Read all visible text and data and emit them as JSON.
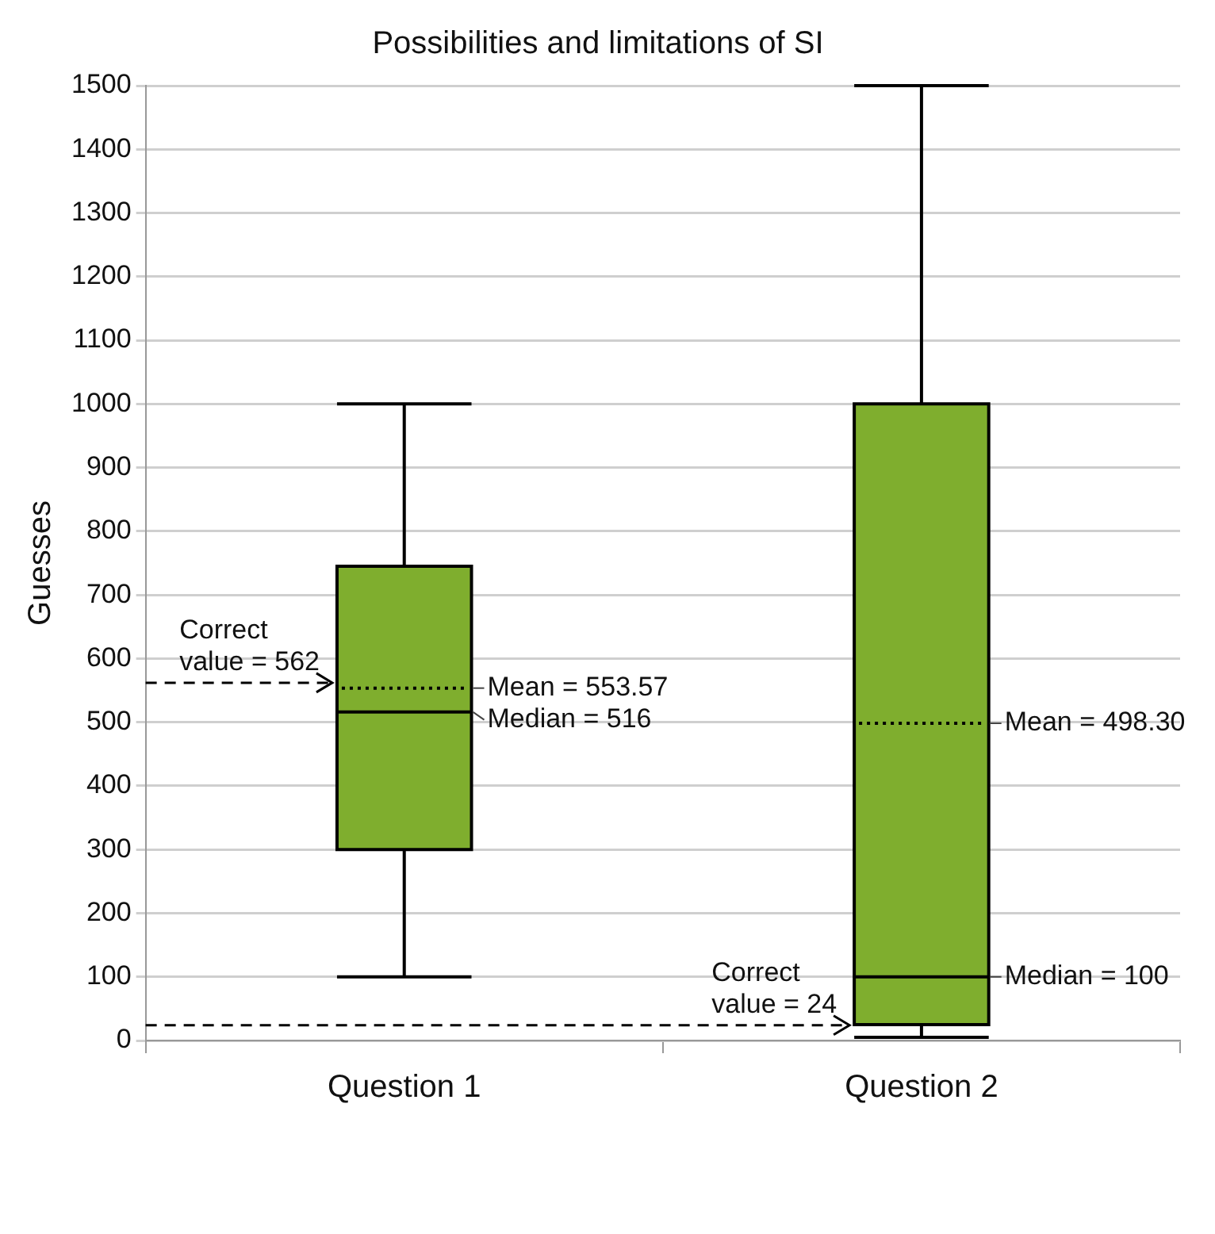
{
  "chart_data": {
    "type": "box",
    "title": "Possibilities and limitations of SI",
    "ylabel": "Guesses",
    "categories": [
      "Question 1",
      "Question 2"
    ],
    "boxes": [
      {
        "low": 100,
        "q1": 300,
        "median": 516,
        "q3": 745,
        "high": 1000,
        "mean": 553.57
      },
      {
        "low": 5,
        "q1": 25,
        "median": 100,
        "q3": 1000,
        "high": 1500,
        "mean": 498.3
      }
    ],
    "color": "#7fae2e",
    "ylim": [
      0,
      1500
    ],
    "yticks": [
      0,
      100,
      200,
      300,
      400,
      500,
      600,
      700,
      800,
      900,
      1000,
      1100,
      1200,
      1300,
      1400,
      1500
    ],
    "grid": "y",
    "ref_lines": [
      {
        "axis": "y",
        "value": 562,
        "label": "Correct\nvalue = 562",
        "line_style": "dashed"
      },
      {
        "axis": "y",
        "value": 24,
        "label": "Correct\nvalue = 24",
        "line_style": "dashed"
      }
    ],
    "annotations": [
      "Mean = 553.57",
      "Median = 516",
      "Mean = 498.30",
      "Median = 100"
    ]
  }
}
